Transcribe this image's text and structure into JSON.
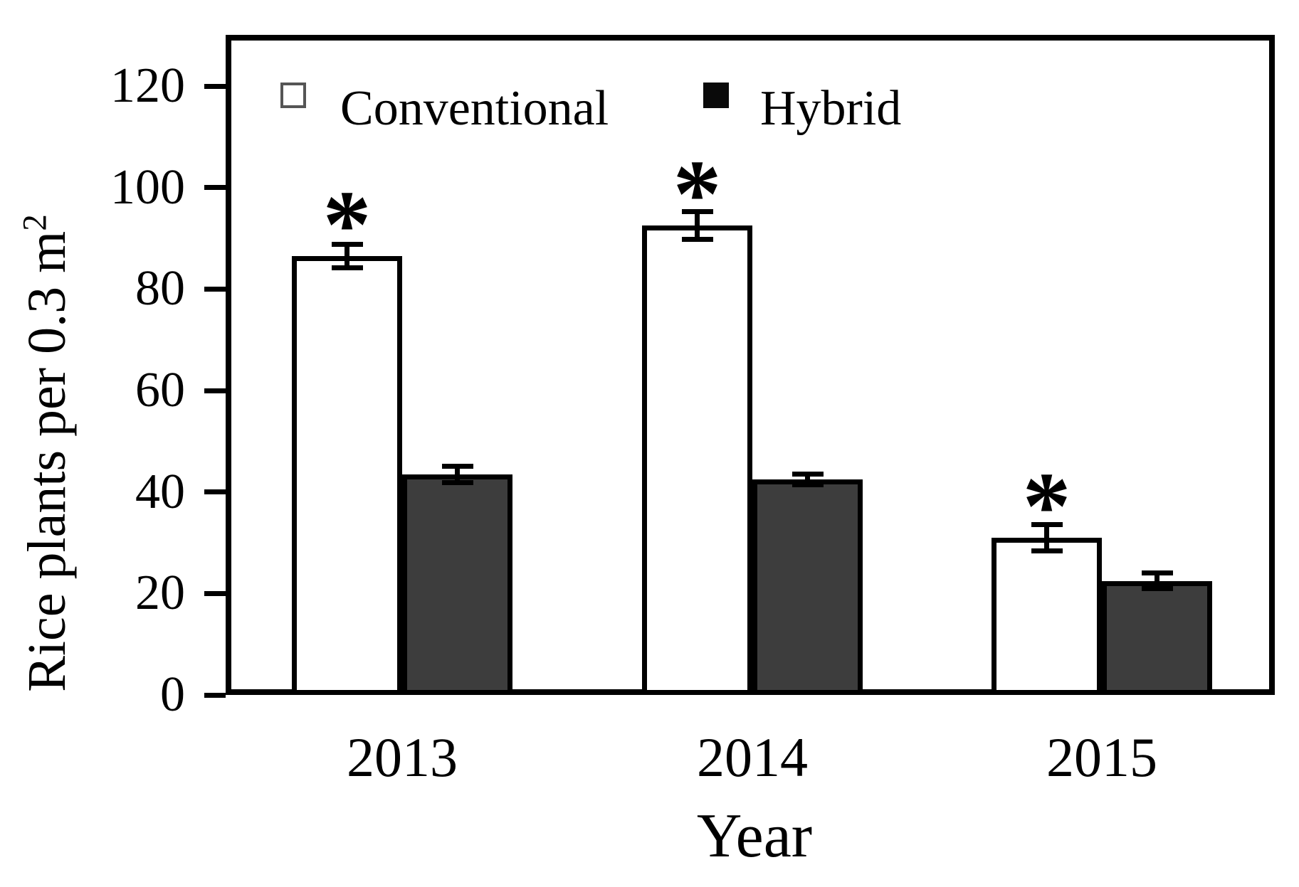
{
  "chart_data": {
    "type": "bar",
    "categories": [
      "2013",
      "2014",
      "2015"
    ],
    "series": [
      {
        "name": "Conventional",
        "values": [
          86.5,
          92.5,
          31
        ],
        "errors": [
          2.3,
          2.7,
          2.6
        ],
        "significant": [
          true,
          true,
          true
        ],
        "fill": "#ffffff"
      },
      {
        "name": "Hybrid",
        "values": [
          43.5,
          42.5,
          22.5
        ],
        "errors": [
          1.6,
          1.1,
          1.5
        ],
        "significant": [
          false,
          false,
          false
        ],
        "fill": "#3d3d3d"
      }
    ],
    "xlabel": "Year",
    "ylabel": "Rice plants per 0.3 m²",
    "ylim": [
      0,
      130
    ],
    "yticks": [
      0,
      20,
      40,
      60,
      80,
      100,
      120
    ],
    "grid": false,
    "legend_position": "top-inside",
    "significance_marker": "*"
  },
  "ui": {
    "ylabel_main": "Rice plants per 0.3 m",
    "ylabel_sup": "2",
    "colors": {
      "foreground": "#000000",
      "background": "#ffffff",
      "conventional_fill": "#ffffff",
      "hybrid_fill": "#3d3d3d",
      "bar_outline": "#000000",
      "legend_open_border": "#555555"
    }
  }
}
